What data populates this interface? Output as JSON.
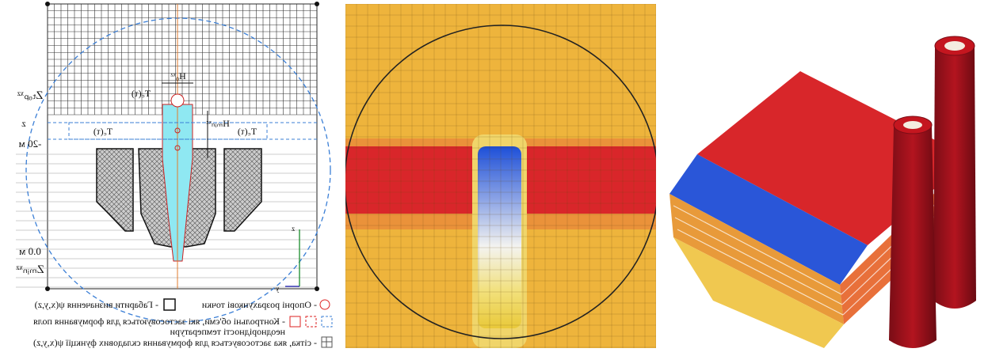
{
  "left_panel": {
    "labels": {
      "width": "H₀ˣᶻ",
      "temp_top": "T꜀(τ)",
      "height": "Hₘᵢₙˣᶻ",
      "z_top": "Zₜₒₚˣᶻ",
      "z_mid": "z",
      "depth_20": "-20 м",
      "temp_left": "T꜀(τ)",
      "temp_right": "T꜀(τ)",
      "depth_0": "0.0 м",
      "z_min": "Zₘᵢₙˣᶻ",
      "axis_z": "z",
      "axis_y": "y"
    },
    "legend": {
      "points": "- Опорні розрахункові точки",
      "bounds": "- Габарити визначення ψ(x,y,z)",
      "volumes": "- Контрольні об'єми, які застосовуються для формування поля",
      "volumes_2": "неоднорідності температури",
      "grid": "- сітка, яка застосовується для формування складових функції ψ(x,y,z)"
    }
  }
}
